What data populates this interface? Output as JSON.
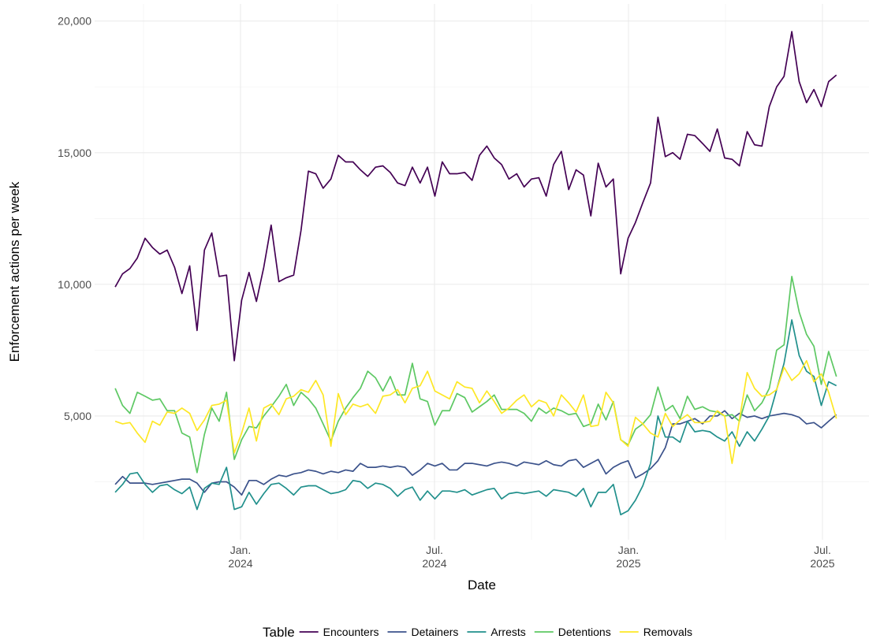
{
  "chart_data": {
    "type": "line",
    "x_label": "Date",
    "y_label": "Enforcement actions per week",
    "legend_title": "Table",
    "legend_position": "bottom",
    "grid": true,
    "xlim": [
      2023.624,
      2025.62
    ],
    "ylim": [
      300,
      20650
    ],
    "xticks": [
      {
        "value": 2024,
        "label": "Jan.\n2024"
      },
      {
        "value": 2024.5,
        "label": "Jul.\n2024"
      },
      {
        "value": 2025,
        "label": "Jan.\n2025"
      },
      {
        "value": 2025.5,
        "label": "Jul.\n2025"
      }
    ],
    "xminorticks": [
      2023.75,
      2024.25,
      2024.75,
      2025.25
    ],
    "yticks": [
      {
        "value": 5000,
        "label": "5,000"
      },
      {
        "value": 10000,
        "label": "10,000"
      },
      {
        "value": 15000,
        "label": "15,000"
      },
      {
        "value": 20000,
        "label": "20,000"
      }
    ],
    "yminorticks": [
      2500,
      7500,
      12500,
      17500
    ],
    "x": [
      2023.677,
      2023.696,
      2023.715,
      2023.734,
      2023.754,
      2023.773,
      2023.792,
      2023.811,
      2023.83,
      2023.849,
      2023.869,
      2023.888,
      2023.907,
      2023.926,
      2023.945,
      2023.964,
      2023.984,
      2024.003,
      2024.022,
      2024.041,
      2024.06,
      2024.079,
      2024.099,
      2024.118,
      2024.137,
      2024.156,
      2024.175,
      2024.194,
      2024.213,
      2024.233,
      2024.252,
      2024.271,
      2024.29,
      2024.309,
      2024.328,
      2024.348,
      2024.367,
      2024.386,
      2024.405,
      2024.424,
      2024.443,
      2024.463,
      2024.482,
      2024.501,
      2024.52,
      2024.539,
      2024.558,
      2024.578,
      2024.597,
      2024.616,
      2024.635,
      2024.654,
      2024.673,
      2024.692,
      2024.712,
      2024.731,
      2024.75,
      2024.769,
      2024.788,
      2024.807,
      2024.827,
      2024.846,
      2024.865,
      2024.884,
      2024.903,
      2024.922,
      2024.942,
      2024.961,
      2024.98,
      2024.999,
      2025.018,
      2025.037,
      2025.057,
      2025.076,
      2025.095,
      2025.114,
      2025.133,
      2025.152,
      2025.171,
      2025.191,
      2025.21,
      2025.229,
      2025.248,
      2025.267,
      2025.286,
      2025.306,
      2025.325,
      2025.344,
      2025.363,
      2025.382,
      2025.401,
      2025.421,
      2025.44,
      2025.459,
      2025.478,
      2025.497,
      2025.516,
      2025.536
    ],
    "series": [
      {
        "name": "Encounters",
        "color": "#440154",
        "values": [
          9900,
          10400,
          10600,
          11000,
          11750,
          11400,
          11150,
          11300,
          10650,
          9650,
          10700,
          8250,
          11300,
          11950,
          10300,
          10350,
          7100,
          9400,
          10450,
          9350,
          10650,
          12250,
          10100,
          10250,
          10350,
          12050,
          14300,
          14200,
          13650,
          14000,
          14900,
          14650,
          14650,
          14350,
          14100,
          14450,
          14500,
          14250,
          13850,
          13750,
          14450,
          13850,
          14450,
          13350,
          14650,
          14200,
          14200,
          14250,
          13950,
          14900,
          15250,
          14800,
          14550,
          14000,
          14200,
          13700,
          14000,
          14050,
          13350,
          14550,
          15050,
          13600,
          14350,
          14150,
          12600,
          14600,
          13700,
          14000,
          10400,
          11750,
          12350,
          13100,
          13850,
          16350,
          14850,
          15000,
          14750,
          15700,
          15650,
          15350,
          15050,
          15900,
          14800,
          14750,
          14500,
          15800,
          15300,
          15250,
          16750,
          17500,
          17900,
          19600,
          17700,
          16900,
          17400,
          16750,
          17700,
          17950
        ]
      },
      {
        "name": "Detainers",
        "color": "#3b528b",
        "values": [
          2400,
          2700,
          2450,
          2450,
          2450,
          2400,
          2450,
          2500,
          2550,
          2600,
          2600,
          2450,
          2100,
          2450,
          2500,
          2500,
          2300,
          2000,
          2550,
          2550,
          2400,
          2600,
          2750,
          2700,
          2800,
          2850,
          2950,
          2900,
          2800,
          2900,
          2850,
          2950,
          2900,
          3200,
          3050,
          3050,
          3100,
          3050,
          3100,
          3050,
          2750,
          2950,
          3200,
          3100,
          3200,
          2950,
          2950,
          3200,
          3200,
          3150,
          3100,
          3200,
          3250,
          3200,
          3100,
          3250,
          3200,
          3150,
          3300,
          3150,
          3100,
          3300,
          3350,
          3050,
          3200,
          3350,
          2800,
          3050,
          3200,
          3300,
          2650,
          2800,
          3000,
          3300,
          3800,
          4700,
          4700,
          4800,
          4900,
          4700,
          5000,
          5000,
          5200,
          4900,
          5100,
          4950,
          5000,
          4900,
          5000,
          5050,
          5100,
          5050,
          4950,
          4700,
          4750,
          4550,
          4800,
          5050
        ]
      },
      {
        "name": "Arrests",
        "color": "#21908c",
        "values": [
          2100,
          2400,
          2800,
          2850,
          2400,
          2100,
          2350,
          2400,
          2200,
          2050,
          2300,
          1450,
          2250,
          2450,
          2400,
          3050,
          1450,
          1550,
          2100,
          1650,
          2050,
          2400,
          2450,
          2250,
          2000,
          2300,
          2350,
          2350,
          2200,
          2050,
          2100,
          2200,
          2550,
          2500,
          2250,
          2450,
          2400,
          2250,
          1950,
          2200,
          2300,
          1800,
          2150,
          1850,
          2150,
          2150,
          2100,
          2200,
          2000,
          2100,
          2200,
          2250,
          1850,
          2050,
          2100,
          2050,
          2100,
          2150,
          1950,
          2200,
          2150,
          2100,
          1950,
          2250,
          1550,
          2100,
          2100,
          2400,
          1250,
          1400,
          1800,
          2350,
          3200,
          5000,
          4200,
          4200,
          4000,
          4800,
          4400,
          4450,
          4400,
          4200,
          4050,
          4400,
          3850,
          4400,
          4050,
          4500,
          5000,
          6000,
          7000,
          8650,
          7300,
          6700,
          6500,
          5400,
          6300,
          6150
        ]
      },
      {
        "name": "Detentions",
        "color": "#5dc863",
        "values": [
          6050,
          5400,
          5100,
          5900,
          5750,
          5600,
          5650,
          5200,
          5200,
          4350,
          4200,
          2850,
          4300,
          5300,
          4800,
          5900,
          3350,
          4100,
          4600,
          4550,
          5000,
          5350,
          5750,
          6200,
          5400,
          5900,
          5650,
          5300,
          4700,
          4050,
          4800,
          5300,
          5700,
          6050,
          6700,
          6450,
          5950,
          6500,
          5800,
          5800,
          7000,
          5650,
          5550,
          4650,
          5200,
          5200,
          5850,
          5700,
          5150,
          5350,
          5550,
          5800,
          5250,
          5250,
          5250,
          5100,
          4800,
          5300,
          5100,
          5300,
          5200,
          5050,
          5100,
          4600,
          4700,
          5450,
          4850,
          5550,
          4100,
          3900,
          4500,
          4700,
          5050,
          6100,
          5200,
          5400,
          4900,
          5750,
          5250,
          5350,
          5200,
          5150,
          5000,
          5050,
          4800,
          5800,
          5200,
          5500,
          6050,
          7500,
          7700,
          10300,
          8950,
          8100,
          7650,
          6200,
          7450,
          6500
        ]
      },
      {
        "name": "Removals",
        "color": "#fde725",
        "values": [
          4800,
          4700,
          4750,
          4350,
          4000,
          4800,
          4650,
          5150,
          5100,
          5300,
          5100,
          4450,
          4850,
          5400,
          5450,
          5600,
          3600,
          4350,
          5300,
          4050,
          5300,
          5450,
          5050,
          5650,
          5750,
          6000,
          5900,
          6350,
          5800,
          3850,
          5850,
          5050,
          5450,
          5350,
          5450,
          5100,
          5750,
          5800,
          6000,
          5500,
          6050,
          6150,
          6700,
          5950,
          5800,
          5650,
          6300,
          6100,
          6050,
          5500,
          5950,
          5550,
          5100,
          5300,
          5600,
          5800,
          5350,
          5600,
          5500,
          5000,
          5800,
          5500,
          5150,
          5800,
          4600,
          4650,
          5900,
          5500,
          4100,
          3850,
          4950,
          4700,
          4350,
          4200,
          5100,
          4600,
          4850,
          5050,
          4750,
          4750,
          4800,
          5200,
          5000,
          3200,
          4850,
          6650,
          6050,
          5750,
          5800,
          6000,
          6850,
          6350,
          6600,
          7100,
          6300,
          6600,
          5900,
          4900
        ]
      }
    ]
  }
}
